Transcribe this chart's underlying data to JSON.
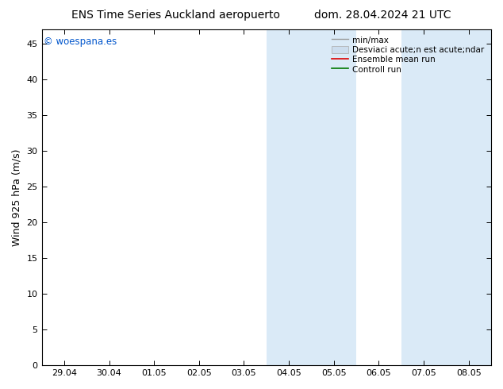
{
  "title_left": "ENS Time Series Auckland aeropuerto",
  "title_right": "dom. 28.04.2024 21 UTC",
  "ylabel": "Wind 925 hPa (m/s)",
  "watermark": "© woespana.es",
  "x_ticks": [
    "29.04",
    "30.04",
    "01.05",
    "02.05",
    "03.05",
    "04.05",
    "05.05",
    "06.05",
    "07.05",
    "08.05"
  ],
  "x_tick_values": [
    0,
    1,
    2,
    3,
    4,
    5,
    6,
    7,
    8,
    9
  ],
  "ylim": [
    0,
    47
  ],
  "y_ticks": [
    0,
    5,
    10,
    15,
    20,
    25,
    30,
    35,
    40,
    45
  ],
  "xlim": [
    -0.5,
    9.5
  ],
  "shaded_bands": [
    {
      "x_start": 4.5,
      "x_end": 5.5,
      "color": "#daeaf7"
    },
    {
      "x_start": 5.5,
      "x_end": 6.5,
      "color": "#daeaf7"
    },
    {
      "x_start": 7.5,
      "x_end": 8.5,
      "color": "#daeaf7"
    },
    {
      "x_start": 8.5,
      "x_end": 9.5,
      "color": "#daeaf7"
    }
  ],
  "bg_color": "#ffffff",
  "plot_bg_color": "#ffffff",
  "legend_labels": [
    "min/max",
    "Desviaci acute;n est acute;ndar",
    "Ensemble mean run",
    "Controll run"
  ],
  "legend_colors_line": [
    "#aaaaaa",
    "#ccddee",
    "#ff0000",
    "#008800"
  ],
  "title_fontsize": 10,
  "tick_fontsize": 8,
  "ylabel_fontsize": 9,
  "watermark_color": "#0055cc",
  "watermark_fontsize": 8.5,
  "legend_fontsize": 7.5
}
